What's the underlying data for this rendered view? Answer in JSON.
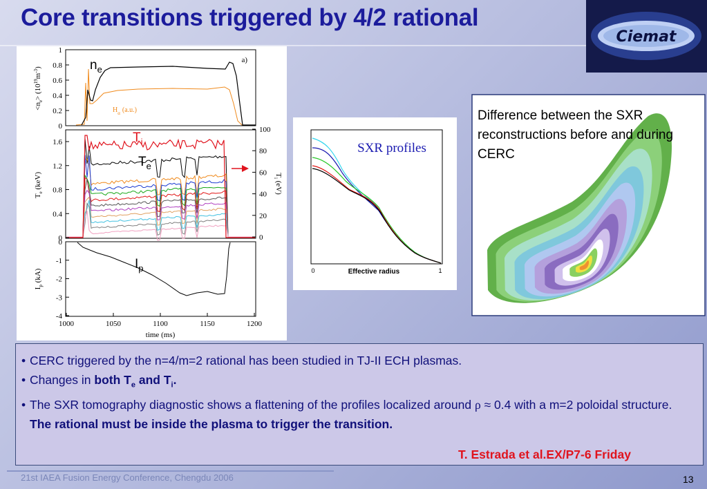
{
  "title": "Core transitions triggered by 4/2 rational",
  "logo": "Ciemat",
  "plot": {
    "panel_a": {
      "yticks": [
        0,
        0.2,
        0.4,
        0.6,
        0.8,
        1
      ],
      "y_label": [
        "<n",
        "e",
        "> (10",
        "19",
        "m",
        "-3",
        ")"
      ],
      "tag": "a)",
      "ne": [
        "n",
        "e"
      ],
      "halpha": [
        "H",
        "α",
        "(a.u.)"
      ]
    },
    "panel_b": {
      "yticks": [
        0,
        0.4,
        0.8,
        1.2,
        1.6
      ],
      "y2ticks": [
        0,
        20,
        40,
        60,
        80,
        100
      ],
      "y_label": [
        "T",
        "e",
        " (keV)"
      ],
      "y2_label": [
        "T",
        "i",
        " (eV)"
      ],
      "ti": [
        "T",
        "i"
      ],
      "te": [
        "T",
        "e"
      ]
    },
    "panel_c": {
      "yticks": [
        0,
        -1,
        -2,
        -3,
        -4
      ],
      "y_label": [
        "I",
        "p",
        " (kA)"
      ],
      "ip": [
        "I",
        "p"
      ]
    },
    "xticks": [
      1000,
      1050,
      1100,
      1150,
      1200
    ],
    "x_label": "time (ms)"
  },
  "sxr": {
    "title": "SXR profiles",
    "x_label": "Effective radius",
    "xticks": [
      0,
      1
    ]
  },
  "right_box": {
    "text": "Difference between the SXR reconstructions before and during CERC"
  },
  "bullets": [
    [
      "CERC triggered by the n=4/m=2 rational has been studied in TJ-II ECH plasmas."
    ],
    [
      "Changes in ",
      "both T",
      "e",
      " and T",
      "i",
      "."
    ],
    [
      "The SXR tomography diagnostic shows a flattening of the profiles localized around ",
      "ρ",
      " ≈ 0.4 with a m=2 poloidal structure."
    ]
  ],
  "conclusion": "The rational must be inside the plasma to trigger the transition.",
  "reference": "T. Estrada et al.EX/P7-6 Friday",
  "footer": "21st IAEA Fusion Energy Conference, Chengdu 2006",
  "page_number": "13"
}
